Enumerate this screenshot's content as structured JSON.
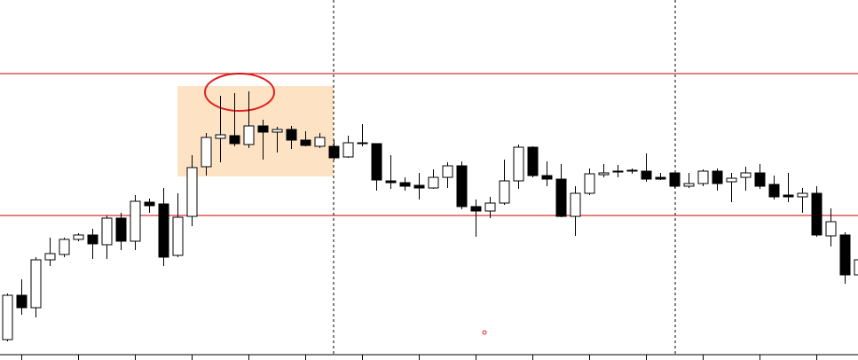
{
  "chart_data": {
    "type": "candlestick",
    "categories": [
      null,
      null,
      null,
      null,
      null,
      null,
      null,
      null,
      null,
      null,
      null,
      null,
      null,
      null,
      null,
      null,
      null,
      null,
      null,
      null,
      null,
      null,
      null,
      null,
      null,
      null,
      null,
      null,
      null,
      null,
      null,
      null,
      null,
      null,
      null,
      null,
      null,
      null,
      null,
      null,
      null,
      null,
      null,
      null,
      null,
      null,
      null,
      null,
      null,
      null,
      null,
      null,
      null,
      null,
      null,
      null,
      null,
      null,
      null,
      null,
      null
    ],
    "open": [
      23,
      73,
      59,
      113,
      119,
      136,
      141,
      130,
      160,
      134,
      178,
      176,
      118,
      162,
      218,
      250,
      253,
      243,
      264,
      257,
      260,
      248,
      241,
      241,
      229,
      244,
      244,
      202,
      200,
      197,
      194,
      206,
      219,
      173,
      168,
      177,
      202,
      240,
      208,
      204,
      162,
      188,
      209,
      212,
      213,
      213,
      206,
      211,
      196,
      199,
      213,
      201,
      206,
      211,
      198,
      186,
      184,
      188,
      140,
      141,
      96
    ],
    "high": [
      75,
      91,
      116,
      138,
      138,
      143,
      148,
      163,
      166,
      186,
      182,
      194,
      188,
      231,
      256,
      298,
      301,
      303,
      271,
      263,
      264,
      258,
      256,
      248,
      253,
      266,
      244,
      231,
      206,
      211,
      215,
      223,
      224,
      181,
      184,
      226,
      243,
      241,
      224,
      221,
      196,
      216,
      221,
      220,
      216,
      233,
      211,
      211,
      211,
      215,
      216,
      211,
      218,
      221,
      208,
      211,
      194,
      196,
      171,
      144,
      116
    ],
    "low": [
      21,
      51,
      48,
      106,
      116,
      134,
      114,
      114,
      124,
      124,
      166,
      106,
      116,
      151,
      208,
      223,
      241,
      239,
      226,
      234,
      238,
      241,
      239,
      226,
      228,
      241,
      191,
      193,
      191,
      181,
      193,
      194,
      170,
      139,
      160,
      175,
      193,
      206,
      196,
      161,
      140,
      186,
      206,
      206,
      210,
      201,
      203,
      194,
      194,
      196,
      191,
      178,
      191,
      193,
      181,
      178,
      166,
      139,
      128,
      86,
      91
    ],
    "close": [
      73,
      59,
      113,
      120,
      136,
      141,
      131,
      160,
      134,
      179,
      174,
      116,
      161,
      217,
      251,
      254,
      244,
      264,
      257,
      260,
      248,
      242,
      251,
      228,
      245,
      245,
      203,
      200,
      196,
      194,
      206,
      219,
      173,
      168,
      177,
      202,
      240,
      208,
      204,
      162,
      188,
      210,
      211,
      213,
      214,
      204,
      204,
      196,
      199,
      213,
      199,
      205,
      211,
      196,
      184,
      184,
      188,
      141,
      156,
      96,
      113
    ],
    "up_color": "#ffffff",
    "down_color": "#000000",
    "hlines": [
      323,
      163
    ],
    "hline_color": "#cc0000",
    "ylim": [
      0,
      406
    ]
  }
}
